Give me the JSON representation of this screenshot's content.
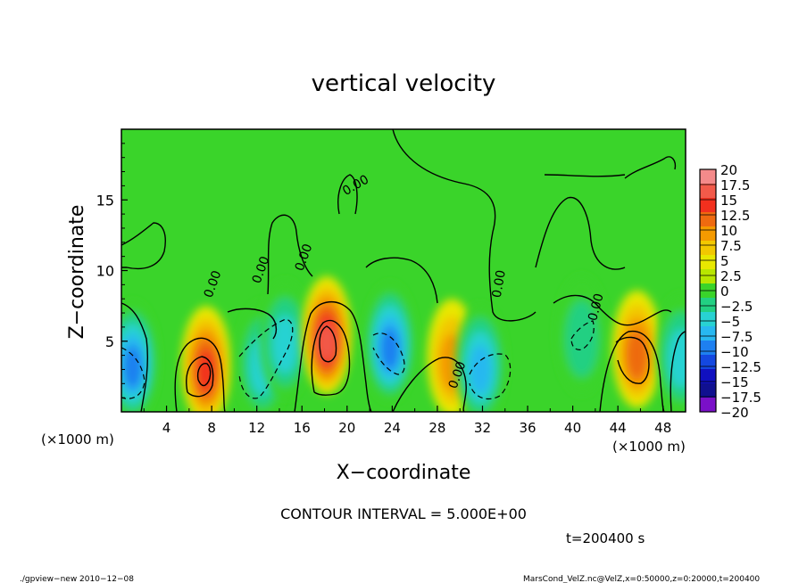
{
  "chart_data": {
    "type": "heatmap",
    "title": "vertical velocity",
    "xlabel": "X−coordinate",
    "ylabel": "Z−coordinate",
    "x_unit_label": "(×1000 m)",
    "y_unit_label": "(×1000 m)",
    "xlim": [
      0,
      50
    ],
    "ylim": [
      0,
      20
    ],
    "x_ticks": [
      4,
      8,
      12,
      16,
      20,
      24,
      28,
      32,
      36,
      40,
      44,
      48
    ],
    "x_tick_labels": [
      "4",
      "8",
      "12",
      "16",
      "20",
      "24",
      "28",
      "32",
      "36",
      "40",
      "44",
      "48"
    ],
    "y_ticks": [
      5,
      10,
      15
    ],
    "y_tick_labels": [
      "5",
      "10",
      "15"
    ],
    "colorbar": {
      "levels": [
        20,
        17.5,
        15,
        12.5,
        10,
        7.5,
        5,
        2.5,
        0,
        -2.5,
        -5,
        -7.5,
        -10,
        -12.5,
        -15,
        -17.5,
        -20
      ],
      "labels": [
        "20",
        "17.5",
        "15",
        "12.5",
        "10",
        "7.5",
        "5",
        "2.5",
        "0",
        "−2.5",
        "−5",
        "−7.5",
        "−10",
        "−12.5",
        "−15",
        "−17.5",
        "−20"
      ],
      "colors": [
        "#f48a8a",
        "#f25a4a",
        "#f2301e",
        "#ee6a10",
        "#f49a00",
        "#f2c800",
        "#e8e800",
        "#b8e600",
        "#3ad42a",
        "#22d082",
        "#28d2d2",
        "#28b8f0",
        "#1e80f0",
        "#1448e0",
        "#1010c0",
        "#101090",
        "#7a10c8"
      ]
    },
    "contour_line_labels": [
      "0.00",
      "0.00",
      "0.00",
      "0.00",
      "0.00",
      "0.00",
      "0.00"
    ],
    "cells": [
      {
        "x": 1.0,
        "z": 3.0,
        "value": -12
      },
      {
        "x": 7.5,
        "z": 2.7,
        "value": 13
      },
      {
        "x": 12.5,
        "z": 3.0,
        "value": -8
      },
      {
        "x": 14.5,
        "z": 4.5,
        "value": -8
      },
      {
        "x": 18.2,
        "z": 4.8,
        "value": 14
      },
      {
        "x": 23.8,
        "z": 4.3,
        "value": -12
      },
      {
        "x": 29.3,
        "z": 3.2,
        "value": 8
      },
      {
        "x": 31.8,
        "z": 2.8,
        "value": -9
      },
      {
        "x": 40.8,
        "z": 4.8,
        "value": -4
      },
      {
        "x": 45.7,
        "z": 3.8,
        "value": 11
      },
      {
        "x": 49.6,
        "z": 3.5,
        "value": -7
      }
    ],
    "contour_interval_text": "CONTOUR INTERVAL = 5.000E+00",
    "time_text": "t=200400 s"
  },
  "footer": {
    "program": "./gpview−new   2010−12−08",
    "source": "MarsCond_VelZ.nc@VelZ,x=0:50000,z=0:20000,t=200400"
  }
}
